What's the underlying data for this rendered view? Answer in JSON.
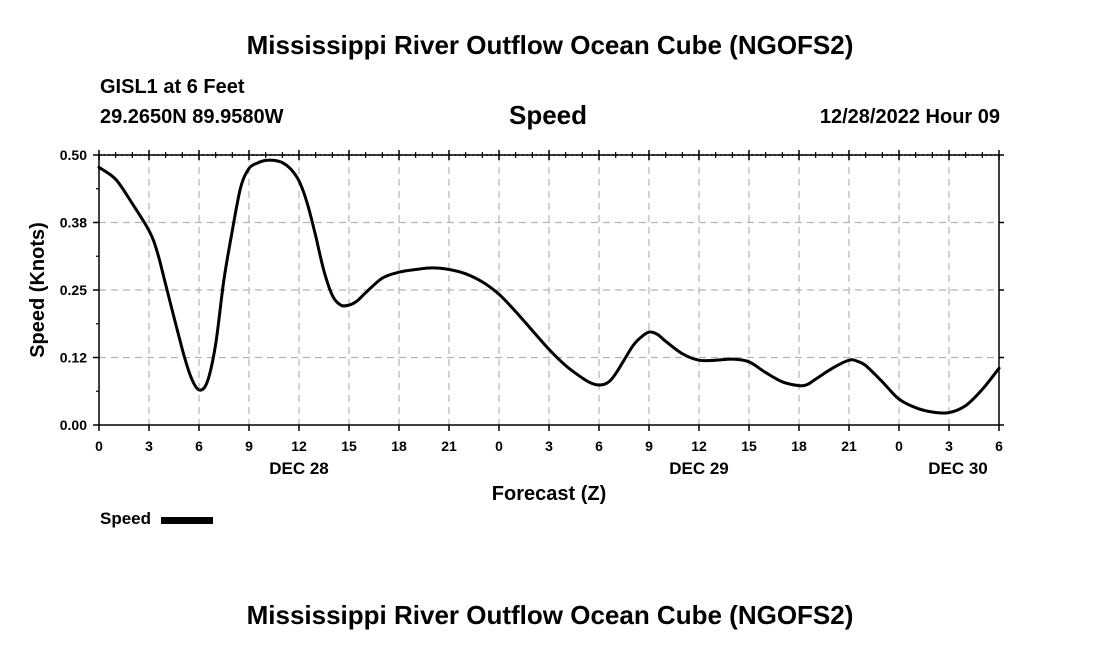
{
  "header": {
    "title": "Mississippi River Outflow Ocean Cube (NGOFS2)",
    "station": "GISL1 at 6 Feet",
    "coords": "29.2650N  89.9580W",
    "variable": "Speed",
    "timestamp": "12/28/2022 Hour 09"
  },
  "footer": {
    "title": "Mississippi River Outflow Ocean Cube (NGOFS2)"
  },
  "chart_data": {
    "type": "line",
    "title": "Speed",
    "xlabel": "Forecast (Z)",
    "ylabel": "Speed (Knots)",
    "xlim": [
      0,
      54
    ],
    "ylim": [
      0,
      0.5
    ],
    "yticks": [
      {
        "value": 0.0,
        "label": "0.00"
      },
      {
        "value": 0.125,
        "label": "0.12"
      },
      {
        "value": 0.25,
        "label": "0.25"
      },
      {
        "value": 0.375,
        "label": "0.38"
      },
      {
        "value": 0.5,
        "label": "0.50"
      }
    ],
    "xticks": [
      {
        "value": 0,
        "label": "0"
      },
      {
        "value": 3,
        "label": "3"
      },
      {
        "value": 6,
        "label": "6"
      },
      {
        "value": 9,
        "label": "9"
      },
      {
        "value": 12,
        "label": "12"
      },
      {
        "value": 15,
        "label": "15"
      },
      {
        "value": 18,
        "label": "18"
      },
      {
        "value": 21,
        "label": "21"
      },
      {
        "value": 24,
        "label": "0"
      },
      {
        "value": 27,
        "label": "3"
      },
      {
        "value": 30,
        "label": "6"
      },
      {
        "value": 33,
        "label": "9"
      },
      {
        "value": 36,
        "label": "12"
      },
      {
        "value": 39,
        "label": "15"
      },
      {
        "value": 42,
        "label": "18"
      },
      {
        "value": 45,
        "label": "21"
      },
      {
        "value": 48,
        "label": "0"
      },
      {
        "value": 51,
        "label": "3"
      },
      {
        "value": 54,
        "label": "6"
      }
    ],
    "day_labels": [
      {
        "value": 12,
        "label": "DEC 28"
      },
      {
        "value": 36,
        "label": "DEC 29"
      },
      {
        "value": 60,
        "label": "DEC 30"
      }
    ],
    "grid": true,
    "legend": "bottom-left",
    "series": [
      {
        "name": "Speed",
        "color": "#000000",
        "x": [
          0,
          1,
          2,
          3,
          3.5,
          4,
          5,
          5.5,
          6,
          6.5,
          7,
          7.5,
          8,
          8.5,
          9,
          9.5,
          10,
          10.5,
          11,
          11.5,
          12,
          12.5,
          13,
          13.5,
          14,
          14.5,
          15,
          15.5,
          16,
          17,
          18,
          19,
          20,
          21,
          22,
          23,
          24,
          25,
          26,
          27,
          28,
          29,
          29.5,
          30,
          30.5,
          31,
          32,
          32.5,
          33,
          33.5,
          34,
          35,
          36,
          37,
          38,
          39,
          40,
          41,
          42,
          42.5,
          43,
          44,
          45,
          45.5,
          46,
          47,
          48,
          49,
          50,
          51,
          52,
          53,
          54
        ],
        "values": [
          0.477,
          0.455,
          0.41,
          0.36,
          0.32,
          0.26,
          0.14,
          0.09,
          0.065,
          0.08,
          0.15,
          0.27,
          0.36,
          0.44,
          0.475,
          0.485,
          0.49,
          0.49,
          0.486,
          0.474,
          0.452,
          0.41,
          0.35,
          0.285,
          0.24,
          0.222,
          0.222,
          0.23,
          0.245,
          0.272,
          0.283,
          0.288,
          0.291,
          0.288,
          0.28,
          0.265,
          0.242,
          0.21,
          0.175,
          0.14,
          0.11,
          0.087,
          0.078,
          0.074,
          0.078,
          0.095,
          0.145,
          0.162,
          0.172,
          0.168,
          0.155,
          0.132,
          0.12,
          0.12,
          0.122,
          0.117,
          0.097,
          0.08,
          0.073,
          0.075,
          0.085,
          0.105,
          0.12,
          0.118,
          0.11,
          0.08,
          0.048,
          0.032,
          0.024,
          0.023,
          0.036,
          0.066,
          0.105
        ]
      }
    ]
  }
}
